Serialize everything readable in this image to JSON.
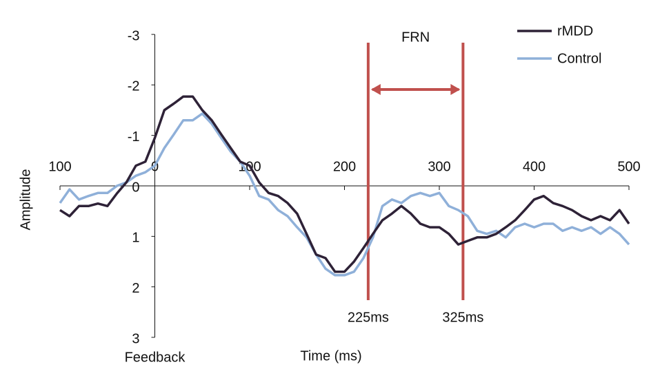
{
  "chart_data": {
    "type": "line",
    "x_label": "Time (ms)",
    "y_label": "Amplitude",
    "x_origin_label": "Feedback",
    "x": [
      -100,
      -90,
      -80,
      -70,
      -60,
      -50,
      -40,
      -30,
      -20,
      -10,
      0,
      10,
      20,
      30,
      40,
      50,
      60,
      70,
      80,
      90,
      100,
      110,
      120,
      130,
      140,
      150,
      160,
      170,
      180,
      190,
      200,
      210,
      220,
      230,
      240,
      250,
      260,
      270,
      280,
      290,
      300,
      310,
      320,
      330,
      340,
      350,
      360,
      370,
      380,
      390,
      400,
      410,
      420,
      430,
      440,
      450,
      460,
      470,
      480,
      490,
      500
    ],
    "series": [
      {
        "name": "rMDD",
        "color": "#2e2237",
        "values": [
          0.48,
          0.6,
          0.4,
          0.4,
          0.35,
          0.4,
          0.15,
          -0.07,
          -0.4,
          -0.48,
          -0.95,
          -1.5,
          -1.63,
          -1.77,
          -1.77,
          -1.5,
          -1.3,
          -1.02,
          -0.75,
          -0.48,
          -0.4,
          -0.07,
          0.14,
          0.2,
          0.34,
          0.55,
          0.95,
          1.36,
          1.43,
          1.7,
          1.7,
          1.5,
          1.23,
          0.95,
          0.68,
          0.55,
          0.4,
          0.55,
          0.75,
          0.82,
          0.82,
          0.95,
          1.16,
          1.09,
          1.02,
          1.02,
          0.95,
          0.82,
          0.68,
          0.48,
          0.27,
          0.2,
          0.34,
          0.4,
          0.48,
          0.6,
          0.68,
          0.6,
          0.68,
          0.48,
          0.75
        ]
      },
      {
        "name": "Control",
        "color": "#8fb0d9",
        "values": [
          0.34,
          0.07,
          0.27,
          0.2,
          0.14,
          0.14,
          0,
          -0.07,
          -0.2,
          -0.27,
          -0.4,
          -0.75,
          -1.02,
          -1.3,
          -1.3,
          -1.43,
          -1.23,
          -0.95,
          -0.68,
          -0.48,
          -0.2,
          0.2,
          0.27,
          0.48,
          0.6,
          0.82,
          1.02,
          1.36,
          1.64,
          1.77,
          1.77,
          1.7,
          1.43,
          1.02,
          0.4,
          0.27,
          0.34,
          0.2,
          0.14,
          0.2,
          0.14,
          0.4,
          0.48,
          0.6,
          0.89,
          0.95,
          0.89,
          1.02,
          0.82,
          0.75,
          0.82,
          0.75,
          0.75,
          0.89,
          0.82,
          0.89,
          0.82,
          0.95,
          0.82,
          0.95,
          1.16
        ]
      }
    ],
    "xlim": [
      -100,
      500
    ],
    "xticks": [
      {
        "value": -100,
        "label": "100"
      },
      0,
      100,
      200,
      300,
      400,
      500
    ],
    "ylim": [
      -3,
      3
    ],
    "yticks": [
      -3,
      -2,
      -1,
      0,
      1,
      2,
      3
    ],
    "y_reversed": true,
    "legend": "top-right",
    "window": {
      "label": "FRN",
      "color": "#c0504d",
      "markers": [
        {
          "value": 225,
          "label": "225ms"
        },
        {
          "value": 325,
          "label": "325ms"
        }
      ]
    }
  }
}
